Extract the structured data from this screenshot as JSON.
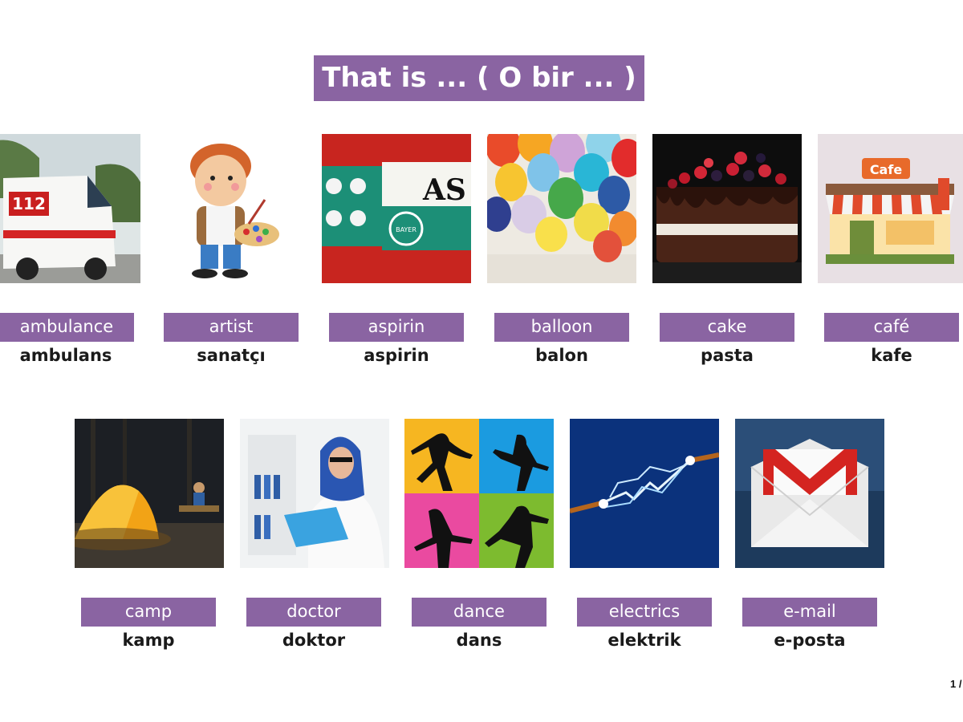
{
  "title": "That is ... ( O bir ... )",
  "page_number": "1 /",
  "cards": [
    {
      "english": "ambulance",
      "turkish": "ambulans",
      "image_icon": "ambulance-photo",
      "image_text": "112"
    },
    {
      "english": "artist",
      "turkish": "sanatçı",
      "image_icon": "artist-illustration"
    },
    {
      "english": "aspirin",
      "turkish": "aspirin",
      "image_icon": "aspirin-box-photo",
      "image_text": "AS",
      "image_brand": "BAYER"
    },
    {
      "english": "balloon",
      "turkish": "balon",
      "image_icon": "balloons-photo"
    },
    {
      "english": "cake",
      "turkish": "pasta",
      "image_icon": "cake-photo"
    },
    {
      "english": "café",
      "turkish": "kafe",
      "image_icon": "cafe-illustration",
      "image_text": "Cafe"
    },
    {
      "english": "camp",
      "turkish": "kamp",
      "image_icon": "tent-photo"
    },
    {
      "english": "doctor",
      "turkish": "doktor",
      "image_icon": "doctor-photo"
    },
    {
      "english": "dance",
      "turkish": "dans",
      "image_icon": "dancers-illustration"
    },
    {
      "english": "electrics",
      "turkish": "elektrik",
      "image_icon": "electric-spark-photo"
    },
    {
      "english": "e-mail",
      "turkish": "e-posta",
      "image_icon": "gmail-envelope-icon"
    }
  ]
}
